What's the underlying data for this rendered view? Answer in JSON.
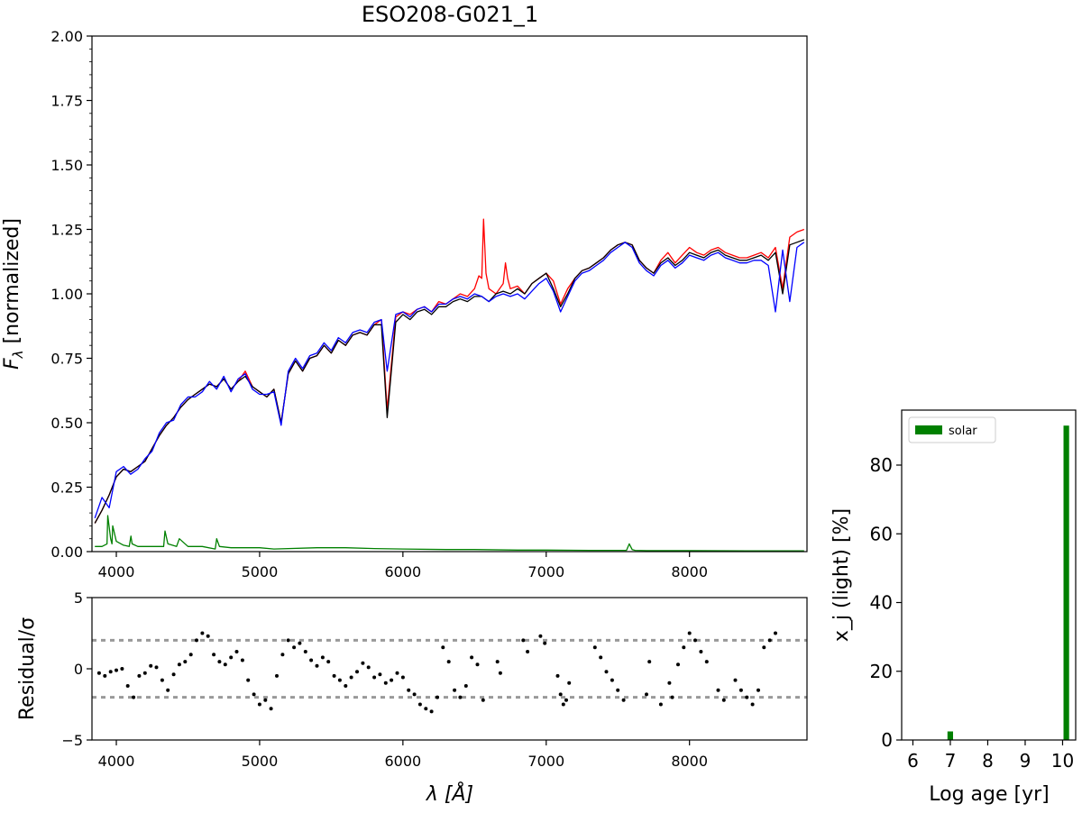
{
  "figure": {
    "title": "ESO208-G021_1"
  },
  "chart_data": [
    {
      "id": "spectrum",
      "type": "line",
      "title": "ESO208-G021_1",
      "xlabel": "λ [Å]",
      "ylabel": "F",
      "ylabel_subscript": "λ",
      "ylabel_suffix": " [normalized]",
      "xlim": [
        3830,
        8820
      ],
      "ylim": [
        0,
        2.0
      ],
      "xticks": [
        4000,
        5000,
        6000,
        7000,
        8000
      ],
      "yticks": [
        0.0,
        0.25,
        0.5,
        0.75,
        1.0,
        1.25,
        1.5,
        1.75,
        2.0
      ],
      "ytick_labels": [
        "0.00",
        "0.25",
        "0.50",
        "0.75",
        "1.00",
        "1.25",
        "1.50",
        "1.75",
        "2.00"
      ],
      "colors": {
        "observed": "#ff0000",
        "observed_masked": "#000000",
        "model": "#0000ff",
        "emission": "#008000"
      },
      "series": [
        {
          "key": "observed",
          "color": "#ff0000",
          "x": [
            3850,
            3900,
            3950,
            4000,
            4050,
            4100,
            4150,
            4200,
            4250,
            4300,
            4350,
            4400,
            4450,
            4500,
            4550,
            4600,
            4650,
            4700,
            4750,
            4800,
            4850,
            4900,
            4950,
            5000,
            5050,
            5100,
            5150,
            5200,
            5250,
            5300,
            5350,
            5400,
            5450,
            5500,
            5550,
            5600,
            5650,
            5700,
            5750,
            5800,
            5850,
            5890,
            5950,
            6000,
            6050,
            6100,
            6150,
            6200,
            6250,
            6300,
            6350,
            6400,
            6450,
            6500,
            6530,
            6550,
            6563,
            6580,
            6600,
            6650,
            6700,
            6716,
            6731,
            6750,
            6800,
            6850,
            6900,
            6950,
            7000,
            7050,
            7100,
            7150,
            7200,
            7250,
            7300,
            7350,
            7400,
            7450,
            7500,
            7550,
            7600,
            7650,
            7700,
            7750,
            7800,
            7850,
            7900,
            7950,
            8000,
            8050,
            8100,
            8150,
            8200,
            8250,
            8300,
            8350,
            8400,
            8450,
            8500,
            8550,
            8600,
            8650,
            8700,
            8750,
            8800
          ],
          "y": [
            0.11,
            0.16,
            0.22,
            0.29,
            0.32,
            0.31,
            0.33,
            0.35,
            0.4,
            0.45,
            0.49,
            0.52,
            0.56,
            0.59,
            0.61,
            0.63,
            0.65,
            0.64,
            0.67,
            0.63,
            0.66,
            0.7,
            0.64,
            0.62,
            0.6,
            0.63,
            0.5,
            0.69,
            0.74,
            0.7,
            0.75,
            0.76,
            0.8,
            0.77,
            0.82,
            0.8,
            0.84,
            0.85,
            0.84,
            0.88,
            0.9,
            0.55,
            0.91,
            0.93,
            0.92,
            0.94,
            0.95,
            0.93,
            0.97,
            0.96,
            0.98,
            1.0,
            0.99,
            1.02,
            1.07,
            1.06,
            1.29,
            1.08,
            1.02,
            1.0,
            1.04,
            1.12,
            1.06,
            1.02,
            1.03,
            1.0,
            1.04,
            1.06,
            1.08,
            1.05,
            0.96,
            1.02,
            1.06,
            1.09,
            1.1,
            1.12,
            1.14,
            1.17,
            1.19,
            1.2,
            1.19,
            1.13,
            1.1,
            1.08,
            1.13,
            1.16,
            1.12,
            1.15,
            1.18,
            1.16,
            1.15,
            1.17,
            1.18,
            1.16,
            1.15,
            1.14,
            1.14,
            1.15,
            1.16,
            1.14,
            1.18,
            1.02,
            1.22,
            1.24,
            1.25
          ]
        },
        {
          "key": "observed_masked",
          "color": "#000000",
          "x": [
            3850,
            3900,
            3950,
            4000,
            4050,
            4100,
            4150,
            4200,
            4250,
            4300,
            4350,
            4400,
            4450,
            4500,
            4550,
            4600,
            4650,
            4700,
            4750,
            4800,
            4850,
            4900,
            4950,
            5000,
            5050,
            5100,
            5150,
            5200,
            5250,
            5300,
            5350,
            5400,
            5450,
            5500,
            5550,
            5600,
            5650,
            5700,
            5750,
            5800,
            5850,
            5890,
            5950,
            6000,
            6050,
            6100,
            6150,
            6200,
            6250,
            6300,
            6350,
            6400,
            6450,
            6500,
            6550,
            6600,
            6650,
            6700,
            6750,
            6800,
            6850,
            6900,
            6950,
            7000,
            7050,
            7100,
            7150,
            7200,
            7250,
            7300,
            7350,
            7400,
            7450,
            7500,
            7550,
            7600,
            7650,
            7700,
            7750,
            7800,
            7850,
            7900,
            7950,
            8000,
            8050,
            8100,
            8150,
            8200,
            8250,
            8300,
            8350,
            8400,
            8450,
            8500,
            8550,
            8600,
            8650,
            8700,
            8750,
            8800
          ],
          "y": [
            0.11,
            0.16,
            0.22,
            0.29,
            0.32,
            0.31,
            0.33,
            0.35,
            0.4,
            0.45,
            0.49,
            0.52,
            0.56,
            0.59,
            0.61,
            0.63,
            0.65,
            0.64,
            0.67,
            0.63,
            0.66,
            0.68,
            0.64,
            0.62,
            0.6,
            0.63,
            0.5,
            0.69,
            0.74,
            0.7,
            0.75,
            0.76,
            0.8,
            0.77,
            0.82,
            0.8,
            0.84,
            0.85,
            0.84,
            0.88,
            0.88,
            0.52,
            0.89,
            0.92,
            0.9,
            0.93,
            0.94,
            0.92,
            0.95,
            0.95,
            0.97,
            0.98,
            0.97,
            0.99,
            0.99,
            0.97,
            1.0,
            1.01,
            1.0,
            1.02,
            1.0,
            1.04,
            1.06,
            1.08,
            1.02,
            0.95,
            1.0,
            1.06,
            1.09,
            1.1,
            1.12,
            1.14,
            1.17,
            1.19,
            1.2,
            1.19,
            1.13,
            1.1,
            1.08,
            1.12,
            1.14,
            1.11,
            1.13,
            1.16,
            1.15,
            1.14,
            1.16,
            1.17,
            1.15,
            1.14,
            1.13,
            1.13,
            1.14,
            1.15,
            1.13,
            1.16,
            1.0,
            1.19,
            1.2,
            1.21
          ]
        },
        {
          "key": "model",
          "color": "#0000ff",
          "x": [
            3850,
            3900,
            3950,
            4000,
            4050,
            4100,
            4150,
            4200,
            4250,
            4300,
            4350,
            4400,
            4450,
            4500,
            4550,
            4600,
            4650,
            4700,
            4750,
            4800,
            4850,
            4900,
            4950,
            5000,
            5050,
            5100,
            5150,
            5200,
            5250,
            5300,
            5350,
            5400,
            5450,
            5500,
            5550,
            5600,
            5650,
            5700,
            5750,
            5800,
            5850,
            5890,
            5950,
            6000,
            6050,
            6100,
            6150,
            6200,
            6250,
            6300,
            6350,
            6400,
            6450,
            6500,
            6550,
            6600,
            6650,
            6700,
            6750,
            6800,
            6850,
            6900,
            6950,
            7000,
            7050,
            7100,
            7150,
            7200,
            7250,
            7300,
            7350,
            7400,
            7450,
            7500,
            7550,
            7600,
            7650,
            7700,
            7750,
            7800,
            7850,
            7900,
            7950,
            8000,
            8050,
            8100,
            8150,
            8200,
            8250,
            8300,
            8350,
            8400,
            8450,
            8500,
            8550,
            8600,
            8650,
            8700,
            8750,
            8800
          ],
          "y": [
            0.13,
            0.21,
            0.17,
            0.31,
            0.33,
            0.3,
            0.32,
            0.36,
            0.39,
            0.46,
            0.5,
            0.51,
            0.57,
            0.6,
            0.6,
            0.62,
            0.66,
            0.63,
            0.68,
            0.62,
            0.67,
            0.69,
            0.63,
            0.61,
            0.61,
            0.62,
            0.49,
            0.7,
            0.75,
            0.71,
            0.76,
            0.77,
            0.81,
            0.78,
            0.83,
            0.81,
            0.85,
            0.86,
            0.85,
            0.89,
            0.9,
            0.7,
            0.92,
            0.93,
            0.91,
            0.94,
            0.95,
            0.93,
            0.96,
            0.96,
            0.98,
            0.99,
            0.98,
            1.0,
            0.99,
            0.97,
            0.99,
            1.0,
            0.99,
            1.0,
            0.98,
            1.01,
            1.04,
            1.06,
            1.01,
            0.93,
            0.99,
            1.05,
            1.08,
            1.09,
            1.11,
            1.13,
            1.16,
            1.18,
            1.2,
            1.18,
            1.12,
            1.09,
            1.07,
            1.11,
            1.13,
            1.1,
            1.12,
            1.15,
            1.14,
            1.13,
            1.15,
            1.16,
            1.14,
            1.13,
            1.12,
            1.12,
            1.13,
            1.13,
            1.11,
            0.93,
            1.17,
            0.97,
            1.18,
            1.2
          ]
        },
        {
          "key": "emission",
          "color": "#008000",
          "x": [
            3850,
            3900,
            3935,
            3940,
            3960,
            3970,
            3975,
            4000,
            4050,
            4090,
            4102,
            4110,
            4150,
            4250,
            4330,
            4340,
            4360,
            4420,
            4440,
            4500,
            4600,
            4690,
            4700,
            4720,
            4800,
            4900,
            5000,
            5100,
            5400,
            5600,
            5800,
            6000,
            6300,
            6500,
            6800,
            7000,
            7300,
            7500,
            7560,
            7580,
            7600,
            7620,
            7700,
            8000,
            8400,
            8800
          ],
          "y": [
            0.02,
            0.02,
            0.03,
            0.14,
            0.05,
            0.03,
            0.1,
            0.04,
            0.025,
            0.02,
            0.06,
            0.03,
            0.02,
            0.02,
            0.02,
            0.08,
            0.03,
            0.02,
            0.05,
            0.02,
            0.02,
            0.01,
            0.05,
            0.02,
            0.015,
            0.015,
            0.015,
            0.01,
            0.015,
            0.015,
            0.012,
            0.01,
            0.008,
            0.008,
            0.006,
            0.006,
            0.005,
            0.005,
            0.005,
            0.03,
            0.008,
            0.005,
            0.004,
            0.004,
            0.003,
            0.003
          ]
        }
      ]
    },
    {
      "id": "residuals",
      "type": "scatter",
      "xlabel": "λ [Å]",
      "ylabel": "Residual/σ",
      "xlim": [
        3830,
        8820
      ],
      "ylim": [
        -5,
        5
      ],
      "xticks": [
        4000,
        5000,
        6000,
        7000,
        8000
      ],
      "yticks": [
        -5,
        0,
        5
      ],
      "hlines": [
        2,
        -2
      ],
      "hline_color": "#999999",
      "point_color": "#000000",
      "points_x": [
        3880,
        3920,
        3960,
        4000,
        4040,
        4080,
        4120,
        4160,
        4200,
        4240,
        4280,
        4320,
        4360,
        4400,
        4440,
        4480,
        4520,
        4560,
        4600,
        4640,
        4680,
        4720,
        4760,
        4800,
        4840,
        4880,
        4920,
        4960,
        5000,
        5040,
        5080,
        5120,
        5160,
        5200,
        5240,
        5280,
        5320,
        5360,
        5400,
        5440,
        5480,
        5520,
        5560,
        5600,
        5640,
        5680,
        5720,
        5760,
        5800,
        5840,
        5880,
        5920,
        5960,
        6000,
        6040,
        6080,
        6120,
        6160,
        6200,
        6240,
        6280,
        6320,
        6360,
        6400,
        6440,
        6480,
        6520,
        6560,
        6660,
        6680,
        6840,
        6870,
        6960,
        6990,
        7080,
        7100,
        7120,
        7140,
        7160,
        7340,
        7380,
        7420,
        7460,
        7500,
        7540,
        7700,
        7720,
        7800,
        7860,
        7880,
        7920,
        7960,
        8000,
        8040,
        8080,
        8120,
        8200,
        8240,
        8320,
        8360,
        8400,
        8440,
        8480,
        8520,
        8560,
        8600
      ],
      "points_y": [
        -0.3,
        -0.5,
        -0.2,
        -0.1,
        0.0,
        -1.2,
        -2.0,
        -0.5,
        -0.3,
        0.2,
        0.1,
        -0.8,
        -1.5,
        -0.4,
        0.3,
        0.5,
        1.0,
        2.0,
        2.5,
        2.3,
        1.0,
        0.5,
        0.3,
        0.8,
        1.2,
        0.6,
        -0.8,
        -1.8,
        -2.5,
        -2.2,
        -2.8,
        -0.5,
        1.0,
        2.0,
        1.5,
        1.8,
        1.2,
        0.6,
        0.2,
        0.8,
        0.5,
        -0.5,
        -0.8,
        -1.2,
        -0.6,
        -0.2,
        0.4,
        0.1,
        -0.6,
        -0.4,
        -1.0,
        -0.8,
        -0.3,
        -0.6,
        -1.5,
        -1.8,
        -2.5,
        -2.8,
        -3.0,
        -2.0,
        1.5,
        0.5,
        -1.5,
        -2.0,
        -1.2,
        0.8,
        0.3,
        -2.2,
        0.5,
        -0.3,
        2.0,
        1.2,
        2.3,
        1.8,
        -0.5,
        -1.8,
        -2.5,
        -2.2,
        -1.0,
        1.5,
        0.8,
        -0.2,
        -0.8,
        -1.5,
        -2.2,
        -1.8,
        0.5,
        -2.5,
        -1.0,
        -2.0,
        0.3,
        1.5,
        2.5,
        2.0,
        1.2,
        0.5,
        -1.5,
        -2.2,
        -0.8,
        -1.5,
        -2.0,
        -2.5,
        -1.5,
        1.5,
        2.0,
        2.5
      ]
    },
    {
      "id": "age-histogram",
      "type": "bar",
      "xlabel": "Log age [yr]",
      "ylabel": "x_j (light) [%]",
      "xlim": [
        5.7,
        10.35
      ],
      "ylim": [
        0,
        96
      ],
      "xticks": [
        6,
        7,
        8,
        9,
        10
      ],
      "yticks": [
        0,
        20,
        40,
        60,
        80
      ],
      "legend": {
        "label": "solar",
        "position": "upper-left"
      },
      "bar_color": "#008000",
      "bar_width": 0.15,
      "bars_x": [
        7.0,
        10.1
      ],
      "bars_y": [
        2.5,
        91.5
      ]
    }
  ]
}
